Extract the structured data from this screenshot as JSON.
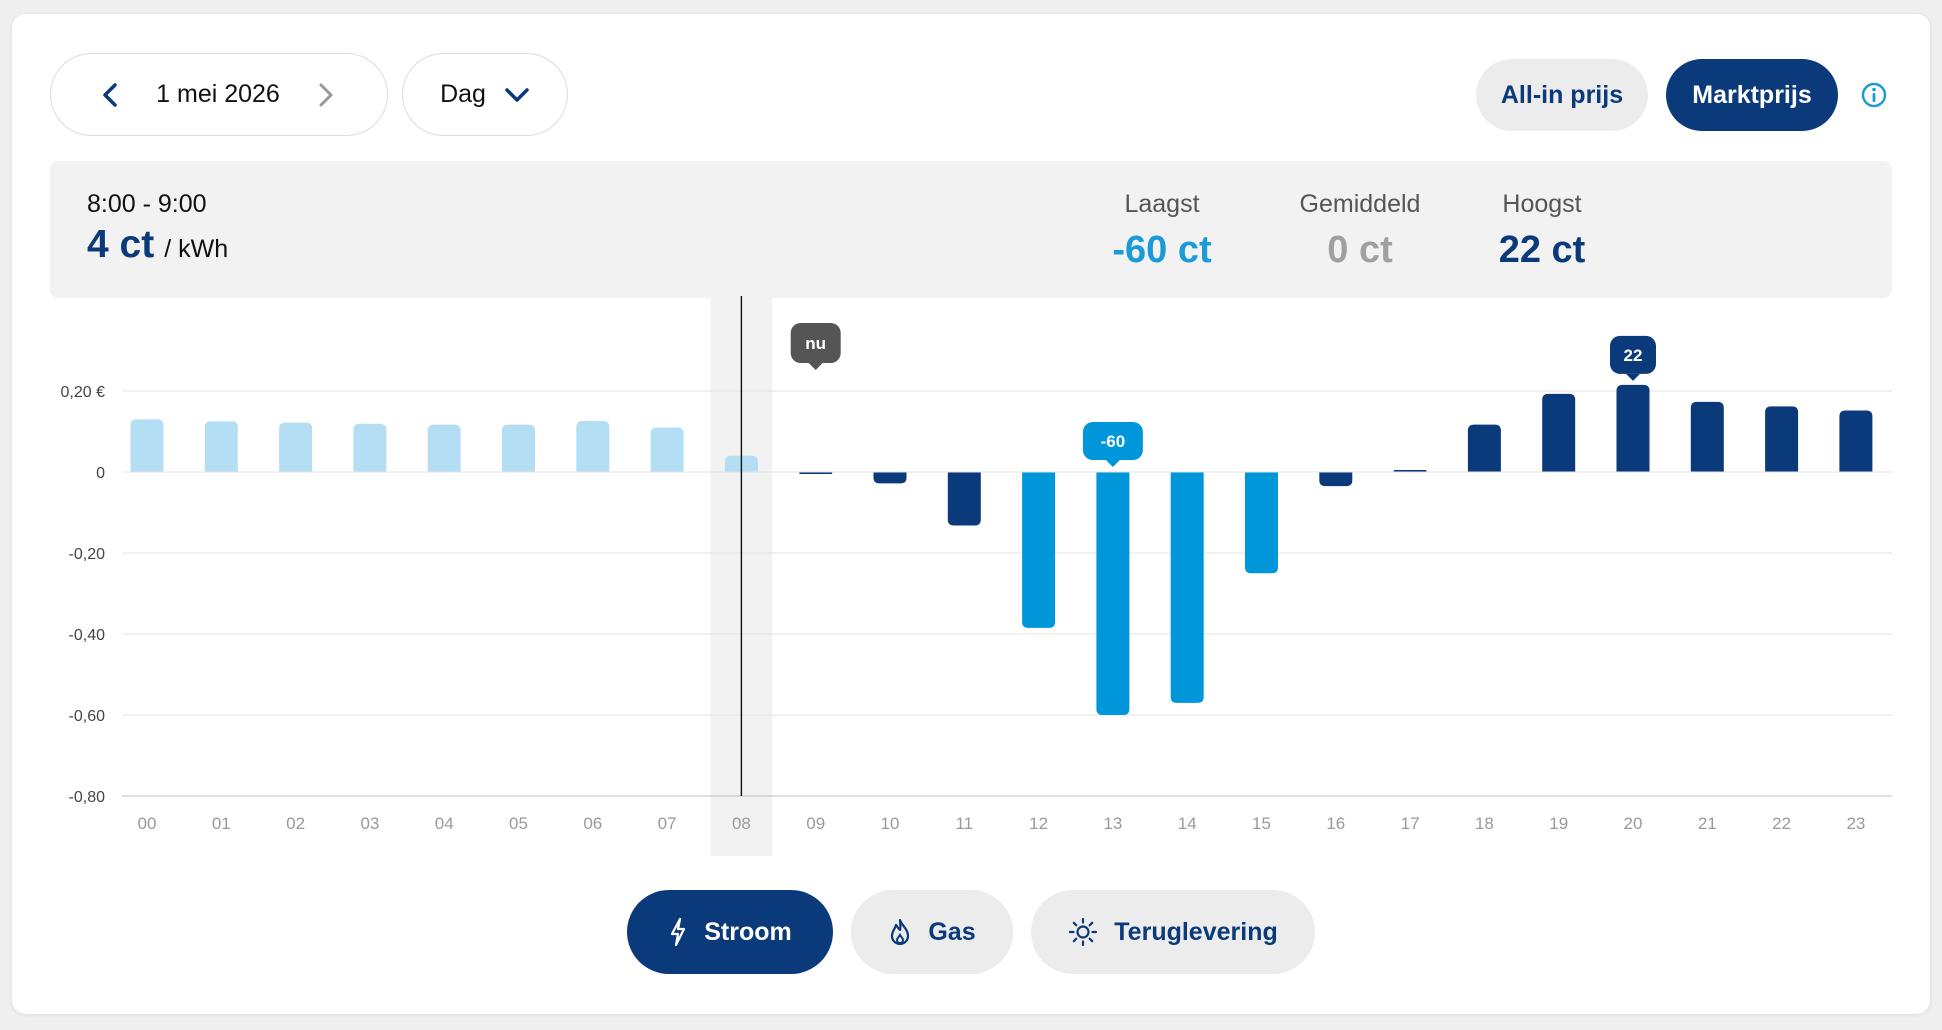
{
  "nav": {
    "date_label": "1 mei 2026",
    "period_label": "Dag",
    "price_toggle": {
      "allin_label": "All-in prijs",
      "market_label": "Marktprijs",
      "selected": "Marktprijs"
    }
  },
  "summary": {
    "time_range": "8:00 - 9:00",
    "current_value": "4 ct",
    "unit": "/ kWh",
    "stats": {
      "lowest": {
        "label": "Laagst",
        "value": "-60 ct"
      },
      "average": {
        "label": "Gemiddeld",
        "value": "0 ct"
      },
      "highest": {
        "label": "Hoogst",
        "value": "22 ct"
      }
    }
  },
  "chart_data": {
    "type": "bar",
    "categories": [
      "00",
      "01",
      "02",
      "03",
      "04",
      "05",
      "06",
      "07",
      "08",
      "09",
      "10",
      "11",
      "12",
      "13",
      "14",
      "15",
      "16",
      "17",
      "18",
      "19",
      "20",
      "21",
      "22",
      "23"
    ],
    "values": [
      0.13,
      0.125,
      0.122,
      0.119,
      0.117,
      0.117,
      0.126,
      0.11,
      0.04,
      -0.004,
      -0.028,
      -0.132,
      -0.385,
      -0.6,
      -0.57,
      -0.25,
      -0.035,
      0.005,
      0.117,
      0.193,
      0.215,
      0.173,
      0.162,
      0.152
    ],
    "ytick_labels": [
      "0,20 €",
      "0",
      "-0,20",
      "-0,40",
      "-0,60",
      "-0,80"
    ],
    "ytick_values": [
      0.2,
      0,
      -0.2,
      -0.4,
      -0.6,
      -0.8
    ],
    "ylim": [
      -0.8,
      0.2
    ],
    "current_hour_index": 8,
    "current_marker_label": "nu",
    "min_marker": {
      "index": 13,
      "label": "-60"
    },
    "max_marker": {
      "index": 20,
      "label": "22"
    },
    "grid": true,
    "colors": {
      "past": "#b3def3",
      "negative": "#0097da",
      "positive": "#0a3a7a",
      "nu_badge": "#555555"
    }
  },
  "tabs": [
    {
      "label": "Stroom",
      "icon": "lightning-icon",
      "active": true
    },
    {
      "label": "Gas",
      "icon": "flame-icon",
      "active": false
    },
    {
      "label": "Teruglevering",
      "icon": "sun-icon",
      "active": false
    }
  ]
}
